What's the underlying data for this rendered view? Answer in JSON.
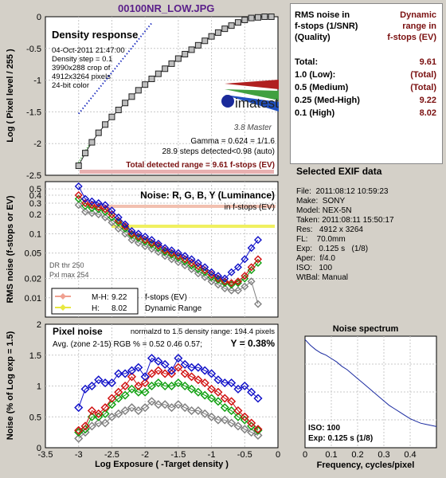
{
  "header": {
    "title": "00100NR_LOW.JPG"
  },
  "density": {
    "title": "Density response",
    "info": [
      "04-Oct-2011 21:47:00",
      "Density step = 0.1",
      "3990x288 crop of",
      "4912x3264 pixels",
      "24-bit color"
    ],
    "gamma": "Gamma = 0.624 = 1/1.6",
    "steps": "28.9 steps detected<0.98 (auto)",
    "total": "Total detected range = 9.61 f-stops (EV)",
    "logo_text": "imatest",
    "logo_sub": "3.8  Master",
    "ylabel": "Log ( Pixel level / 255 )",
    "yticks": [
      "0",
      "-0.5",
      "-1",
      "-1.5",
      "-2",
      "-2.5"
    ],
    "ylim": [
      -2.5,
      0
    ]
  },
  "noise": {
    "title": "Noise: R, G, B, Y (Luminance)",
    "subtitle": "in f-stops (EV)",
    "ylabel": "RMS noise (f-stops or EV)",
    "yticks": [
      "0.5",
      "0.4",
      "0.3",
      "0.2",
      "0.1",
      "0.05",
      "0.02",
      "0.01"
    ],
    "dr_thr": "DR thr 250",
    "pxl_max": "Pxl max 254",
    "legend": [
      {
        "label": "M-H:",
        "value": "9.22",
        "color": "#f0a090"
      },
      {
        "label": "H:",
        "value": "8.02",
        "color": "#e8e840"
      }
    ],
    "legend_note1": "f-stops (EV)",
    "legend_note2": "Dynamic Range"
  },
  "pixel": {
    "title": "Pixel noise",
    "norm_text": "normalzd to 1.5 density range: 194.4 pixels",
    "avg_text": "Avg. (zone 2-15) RGB % = 0.52   0.46   0.57;",
    "y_text": "Y = 0.38%",
    "ylabel": "Noise (% of Log exp = 1.5)",
    "yticks": [
      "2",
      "1.5",
      "1",
      "0.5",
      "0"
    ],
    "xlabel": "Log Exposure ( -Target density )",
    "xticks": [
      "-3.5",
      "-3",
      "-2.5",
      "-2",
      "-1.5",
      "-1",
      "-0.5",
      "0"
    ]
  },
  "spectrum": {
    "title": "Noise spectrum",
    "iso": "ISO:   100",
    "exp": "Exp:   0.125 s   (1/8)",
    "xlabel": "Frequency, cycles/pixel",
    "xticks": [
      "0",
      "0.1",
      "0.2",
      "0.3",
      "0.4"
    ]
  },
  "rms": {
    "header_left": [
      "RMS noise in",
      "f-stops (1/SNR)",
      "(Quality)"
    ],
    "header_right": [
      "Dynamic",
      "range in",
      "f-stops (EV)"
    ],
    "rows": [
      {
        "label": "Total:",
        "value": "9.61"
      },
      {
        "label": "1.0   (Low):",
        "value": "(Total)"
      },
      {
        "label": "0.5   (Medium)",
        "value": "(Total)"
      },
      {
        "label": "0.25 (Med-High)",
        "value": "9.22"
      },
      {
        "label": "0.1   (High)",
        "value": "8.02"
      }
    ]
  },
  "exif": {
    "title": "Selected EXIF data",
    "lines": [
      "File:  2011:08:12 10:59:23",
      "Make:  SONY",
      "Model: NEX-5N",
      "Taken: 2011:08:11 15:50:17",
      "Res:   4912 x 3264",
      "FL:    70.0mm",
      "Exp:   0.125 s   (1/8)",
      "Aper:  f/4.0",
      "ISO:   100",
      "WtBal: Manual"
    ]
  },
  "chart_data": [
    {
      "type": "scatter",
      "title": "Density response",
      "ylabel": "Log ( Pixel level / 255 )",
      "xlim": [
        -3.5,
        0
      ],
      "ylim": [
        -2.5,
        0
      ],
      "series": [
        {
          "values_x": [
            -3.0,
            -2.9,
            -2.8,
            -2.7,
            -2.6,
            -2.5,
            -2.4,
            -2.3,
            -2.2,
            -2.1,
            -2.0,
            -1.9,
            -1.8,
            -1.7,
            -1.6,
            -1.5,
            -1.4,
            -1.3,
            -1.2,
            -1.1,
            -1.0,
            -0.9,
            -0.8,
            -0.7,
            -0.6,
            -0.5,
            -0.4,
            -0.3,
            -0.2,
            -0.1
          ],
          "values_y": [
            -2.35,
            -2.15,
            -1.98,
            -1.83,
            -1.7,
            -1.58,
            -1.47,
            -1.36,
            -1.26,
            -1.16,
            -1.07,
            -0.98,
            -0.9,
            -0.82,
            -0.74,
            -0.66,
            -0.59,
            -0.52,
            -0.45,
            -0.38,
            -0.31,
            -0.25,
            -0.19,
            -0.14,
            -0.09,
            -0.05,
            -0.02,
            -0.01,
            0.0,
            0.0
          ]
        }
      ]
    },
    {
      "type": "scatter",
      "title": "Noise: R, G, B, Y (Luminance)",
      "ylabel": "RMS noise (f-stops or EV)",
      "xlim": [
        -3.5,
        0
      ],
      "ylim": [
        0.005,
        0.6
      ],
      "yscale": "log",
      "x": [
        -3.0,
        -2.9,
        -2.8,
        -2.7,
        -2.6,
        -2.5,
        -2.4,
        -2.3,
        -2.2,
        -2.1,
        -2.0,
        -1.9,
        -1.8,
        -1.7,
        -1.6,
        -1.5,
        -1.4,
        -1.3,
        -1.2,
        -1.1,
        -1.0,
        -0.9,
        -0.8,
        -0.7,
        -0.6,
        -0.5,
        -0.4,
        -0.3
      ],
      "series": [
        {
          "color": "#1010c8",
          "values": [
            0.55,
            0.35,
            0.32,
            0.3,
            0.28,
            0.23,
            0.18,
            0.14,
            0.11,
            0.1,
            0.09,
            0.08,
            0.07,
            0.06,
            0.055,
            0.05,
            0.045,
            0.04,
            0.035,
            0.03,
            0.025,
            0.022,
            0.02,
            0.025,
            0.03,
            0.04,
            0.06,
            0.08
          ]
        },
        {
          "color": "#d01010",
          "values": [
            0.4,
            0.3,
            0.28,
            0.26,
            0.24,
            0.2,
            0.16,
            0.13,
            0.1,
            0.09,
            0.08,
            0.072,
            0.065,
            0.055,
            0.05,
            0.045,
            0.04,
            0.035,
            0.031,
            0.027,
            0.023,
            0.02,
            0.018,
            0.017,
            0.018,
            0.022,
            0.03,
            0.04
          ]
        },
        {
          "color": "#10a010",
          "values": [
            0.35,
            0.27,
            0.25,
            0.24,
            0.22,
            0.18,
            0.15,
            0.12,
            0.095,
            0.085,
            0.075,
            0.068,
            0.06,
            0.052,
            0.047,
            0.042,
            0.037,
            0.032,
            0.028,
            0.025,
            0.021,
            0.019,
            0.017,
            0.016,
            0.017,
            0.02,
            0.027,
            0.035
          ]
        },
        {
          "color": "#808080",
          "values": [
            0.28,
            0.22,
            0.21,
            0.2,
            0.18,
            0.15,
            0.12,
            0.1,
            0.08,
            0.072,
            0.064,
            0.058,
            0.052,
            0.045,
            0.04,
            0.036,
            0.032,
            0.028,
            0.024,
            0.021,
            0.018,
            0.016,
            0.014,
            0.013,
            0.013,
            0.015,
            0.018,
            0.008
          ]
        }
      ]
    },
    {
      "type": "scatter",
      "title": "Pixel noise",
      "ylabel": "Noise (% of Log exp = 1.5)",
      "xlabel": "Log Exposure ( -Target density )",
      "xlim": [
        -3.5,
        0
      ],
      "ylim": [
        0,
        2
      ],
      "x": [
        -3.0,
        -2.9,
        -2.8,
        -2.7,
        -2.6,
        -2.5,
        -2.4,
        -2.3,
        -2.2,
        -2.1,
        -2.0,
        -1.9,
        -1.8,
        -1.7,
        -1.6,
        -1.5,
        -1.4,
        -1.3,
        -1.2,
        -1.1,
        -1.0,
        -0.9,
        -0.8,
        -0.7,
        -0.6,
        -0.5,
        -0.4,
        -0.3
      ],
      "series": [
        {
          "color": "#1010c8",
          "values": [
            0.65,
            0.95,
            1.0,
            1.1,
            1.05,
            1.05,
            1.2,
            1.2,
            1.25,
            1.3,
            1.15,
            1.45,
            1.4,
            1.35,
            1.25,
            1.45,
            1.35,
            1.3,
            1.3,
            1.25,
            1.2,
            1.1,
            1.05,
            1.05,
            0.95,
            1.0,
            0.9,
            0.8
          ]
        },
        {
          "color": "#d01010",
          "values": [
            0.28,
            0.35,
            0.6,
            0.55,
            0.65,
            0.8,
            0.9,
            1.0,
            1.15,
            1.0,
            1.05,
            1.2,
            1.25,
            1.2,
            1.2,
            1.3,
            1.2,
            1.15,
            1.1,
            1.05,
            0.95,
            0.9,
            0.8,
            0.75,
            0.6,
            0.5,
            0.4,
            0.3
          ]
        },
        {
          "color": "#10a010",
          "values": [
            0.25,
            0.3,
            0.5,
            0.5,
            0.55,
            0.7,
            0.8,
            0.85,
            0.95,
            0.9,
            0.9,
            1.0,
            1.05,
            1.0,
            1.0,
            1.05,
            1.0,
            0.95,
            0.9,
            0.85,
            0.8,
            0.75,
            0.65,
            0.6,
            0.5,
            0.45,
            0.35,
            0.28
          ]
        },
        {
          "color": "#808080",
          "values": [
            0.15,
            0.25,
            0.35,
            0.4,
            0.4,
            0.5,
            0.55,
            0.6,
            0.65,
            0.6,
            0.65,
            0.75,
            0.7,
            0.7,
            0.65,
            0.7,
            0.65,
            0.6,
            0.6,
            0.55,
            0.5,
            0.45,
            0.45,
            0.4,
            0.35,
            0.3,
            0.25,
            0.2
          ]
        }
      ]
    },
    {
      "type": "line",
      "title": "Noise spectrum",
      "xlabel": "Frequency, cycles/pixel",
      "xlim": [
        0,
        0.5
      ],
      "ylim": [
        0,
        1
      ],
      "x": [
        0.0,
        0.02,
        0.04,
        0.06,
        0.08,
        0.1,
        0.12,
        0.14,
        0.16,
        0.18,
        0.2,
        0.22,
        0.24,
        0.26,
        0.28,
        0.3,
        0.32,
        0.34,
        0.36,
        0.38,
        0.4,
        0.42,
        0.44,
        0.46,
        0.48,
        0.5
      ],
      "series": [
        {
          "values": [
            0.97,
            0.92,
            0.88,
            0.85,
            0.83,
            0.8,
            0.77,
            0.73,
            0.7,
            0.66,
            0.62,
            0.58,
            0.54,
            0.5,
            0.46,
            0.42,
            0.38,
            0.35,
            0.32,
            0.29,
            0.26,
            0.24,
            0.22,
            0.21,
            0.2,
            0.19
          ]
        }
      ]
    }
  ]
}
